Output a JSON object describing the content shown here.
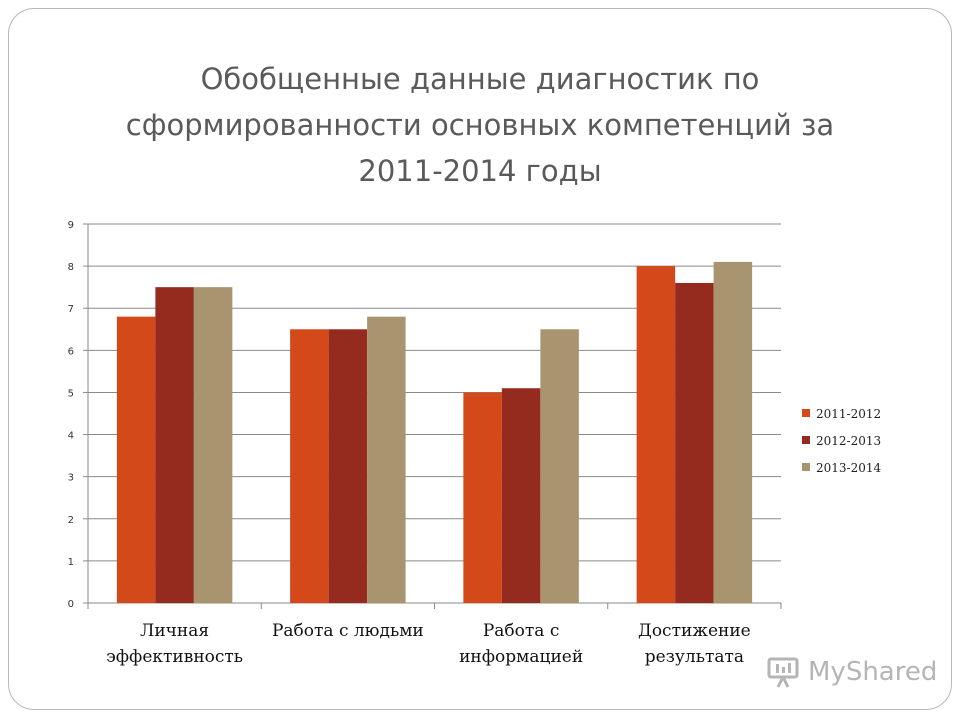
{
  "title_lines": [
    "Обобщенные данные диагностик по",
    "сформированности основных компетенций за",
    "2011-2014 годы"
  ],
  "watermark": "MyShared",
  "chart_data": {
    "type": "bar",
    "title": "Обобщенные данные диагностик по сформированности основных компетенций за 2011-2014 годы",
    "categories": [
      [
        "Личная",
        "эффективность"
      ],
      [
        "Работа с людьми"
      ],
      [
        "Работа с",
        "информацией"
      ],
      [
        "Достижение",
        "результата"
      ]
    ],
    "series": [
      {
        "name": "2011-2012",
        "color": "#d4491a",
        "values": [
          6.8,
          6.5,
          5.0,
          8.0
        ]
      },
      {
        "name": "2012-2013",
        "color": "#952b1e",
        "values": [
          7.5,
          6.5,
          5.1,
          7.6
        ]
      },
      {
        "name": "2013-2014",
        "color": "#a8956f",
        "values": [
          7.5,
          6.8,
          6.5,
          8.1
        ]
      }
    ],
    "ylim": [
      0,
      9
    ],
    "yticks": [
      "0",
      "1",
      "2",
      "3",
      "4",
      "5",
      "6",
      "7",
      "8",
      "9"
    ],
    "grid": true,
    "legend_position": "right"
  }
}
